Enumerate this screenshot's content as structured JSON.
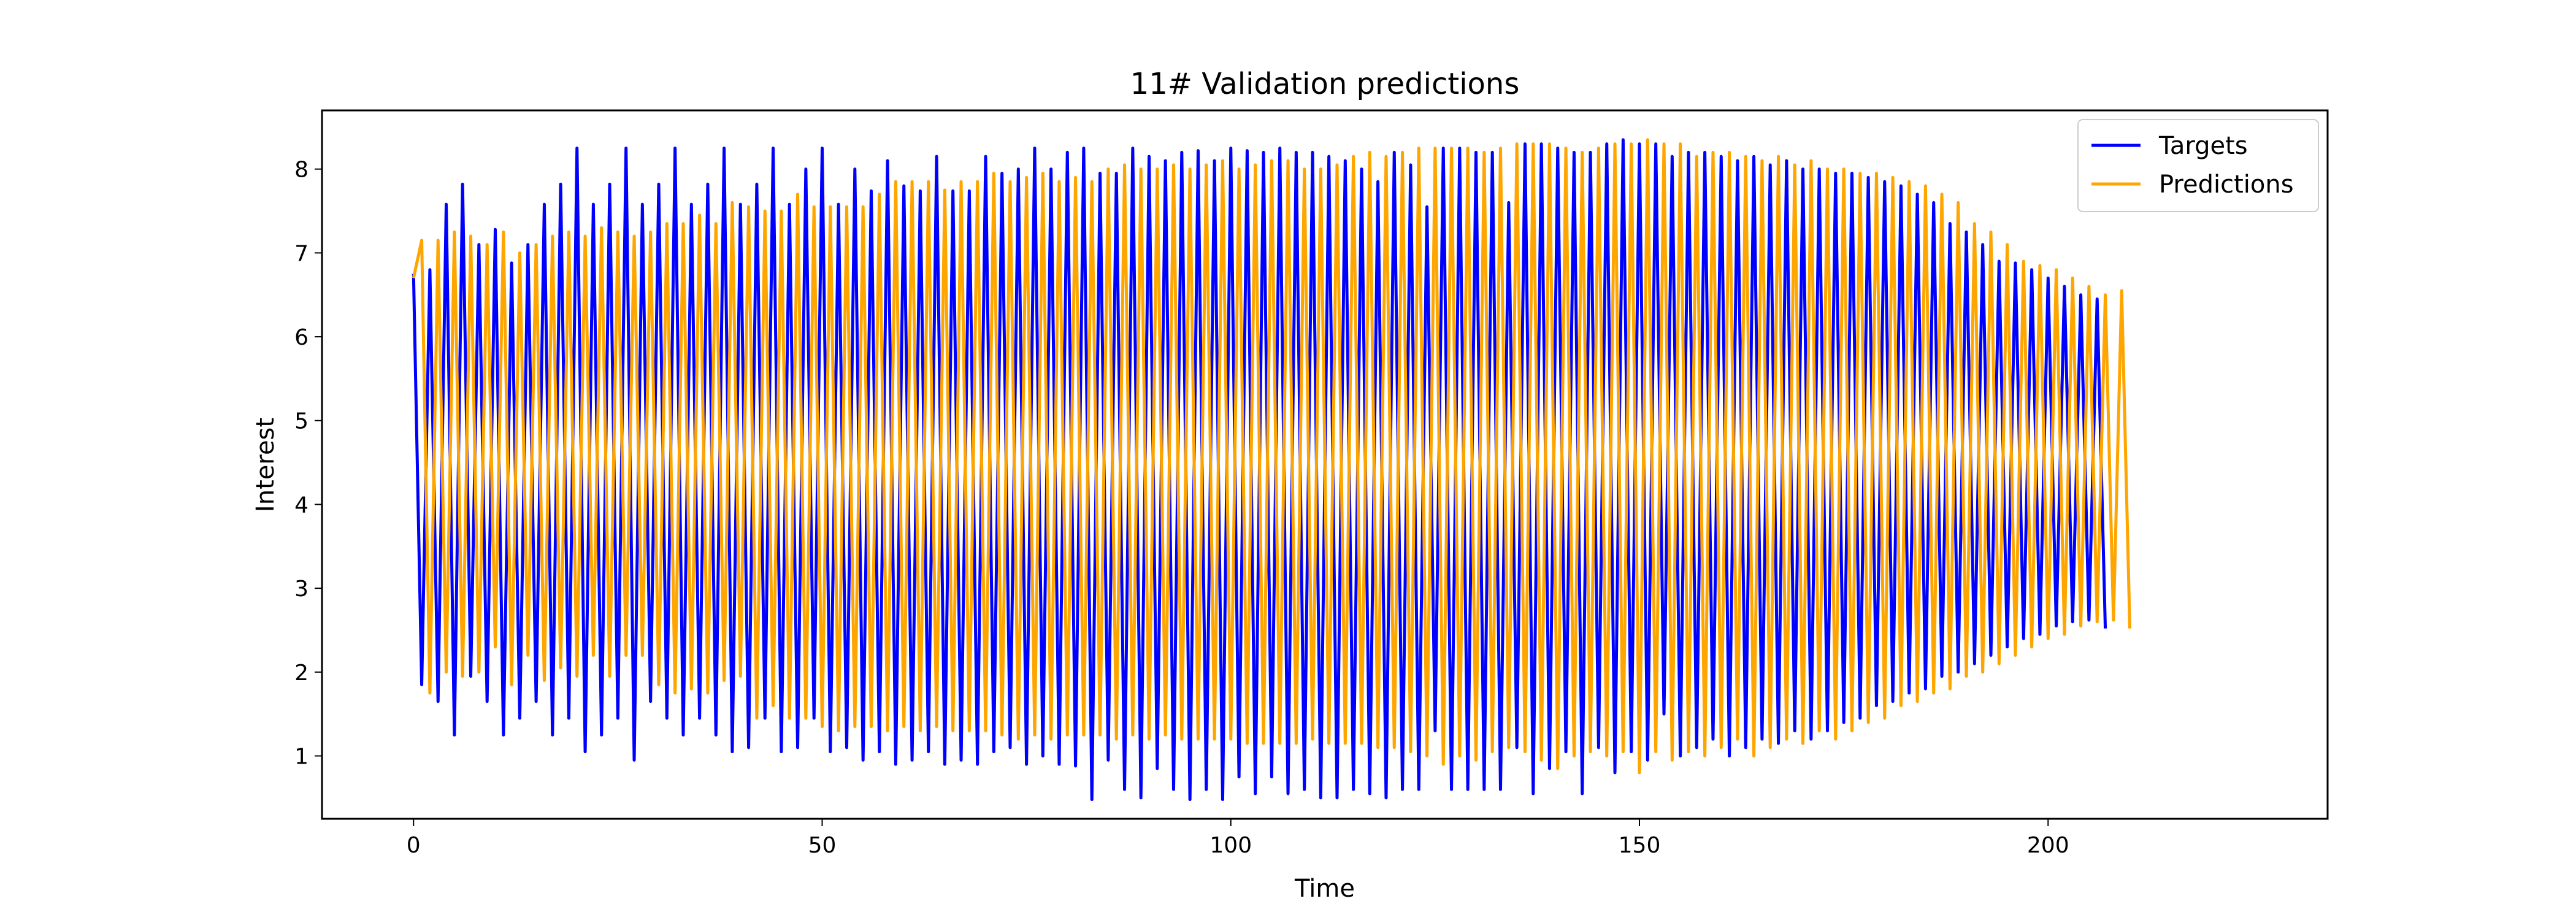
{
  "chart_data": {
    "type": "line",
    "title": "11# Validation predictions",
    "xlabel": "Time",
    "ylabel": "Interest",
    "xlim": [
      -11.2,
      234.2
    ],
    "ylim": [
      0.25,
      8.7
    ],
    "xticks": [
      0,
      50,
      100,
      150,
      200
    ],
    "yticks": [
      1,
      2,
      3,
      4,
      5,
      6,
      7,
      8
    ],
    "grid": false,
    "legend_position": "top-right",
    "n_points": 224,
    "series": [
      {
        "name": "Targets",
        "color": "#0000ff",
        "values": [
          6.75,
          1.85,
          6.8,
          1.65,
          7.58,
          1.25,
          7.82,
          1.95,
          7.1,
          1.65,
          7.28,
          1.25,
          6.88,
          1.45,
          7.1,
          1.65,
          7.58,
          1.25,
          7.82,
          1.45,
          8.25,
          1.05,
          7.58,
          1.25,
          7.82,
          1.45,
          8.25,
          0.95,
          7.58,
          1.65,
          7.82,
          1.45,
          8.25,
          1.25,
          7.58,
          1.45,
          7.82,
          1.25,
          8.25,
          1.05,
          7.58,
          1.1,
          7.82,
          1.45,
          8.25,
          1.05,
          7.58,
          1.1,
          8.0,
          1.45,
          8.25,
          1.05,
          7.58,
          1.1,
          8.0,
          0.95,
          7.74,
          1.05,
          8.1,
          0.9,
          7.8,
          0.95,
          7.74,
          1.05,
          8.15,
          0.9,
          7.74,
          0.95,
          7.74,
          0.9,
          8.15,
          1.05,
          7.95,
          1.1,
          8.0,
          0.9,
          8.25,
          1.0,
          8.0,
          0.9,
          8.2,
          0.88,
          8.25,
          0.48,
          7.95,
          0.95,
          7.95,
          0.6,
          8.25,
          0.5,
          8.15,
          0.85,
          8.1,
          0.6,
          8.2,
          0.48,
          8.22,
          0.6,
          8.1,
          0.48,
          8.25,
          0.75,
          8.22,
          0.55,
          8.2,
          0.75,
          8.25,
          0.55,
          8.2,
          0.6,
          8.2,
          0.5,
          8.15,
          0.5,
          8.1,
          0.6,
          8.0,
          0.55,
          7.85,
          0.5,
          8.2,
          0.6,
          8.05,
          0.6,
          7.55,
          1.3,
          8.25,
          0.6,
          8.25,
          0.6,
          8.2,
          0.6,
          8.2,
          0.6,
          7.6,
          1.1,
          8.3,
          0.55,
          8.3,
          0.85,
          8.25,
          1.05,
          8.2,
          0.55,
          8.2,
          1.1,
          8.3,
          0.8,
          8.35,
          1.05,
          8.3,
          0.95,
          8.3,
          1.5,
          8.15,
          1.0,
          8.2,
          1.1,
          8.2,
          1.2,
          8.15,
          1.0,
          8.1,
          1.1,
          8.15,
          1.2,
          8.05,
          1.15,
          8.1,
          1.3,
          8.0,
          1.2,
          8.0,
          1.3,
          7.95,
          1.4,
          7.95,
          1.45,
          7.9,
          1.6,
          7.85,
          1.65,
          7.8,
          1.75,
          7.7,
          1.8,
          7.6,
          1.95,
          7.35,
          2.0,
          7.25,
          2.1,
          7.1,
          2.2,
          6.9,
          2.3,
          6.88,
          2.4,
          6.8,
          2.45,
          6.7,
          2.55,
          6.6,
          2.6,
          6.5,
          2.62,
          6.45,
          2.52
        ]
      },
      {
        "name": "Predictions",
        "color": "#ffa500",
        "values": [
          6.7,
          7.15,
          1.75,
          7.15,
          2.0,
          7.25,
          1.95,
          7.2,
          2.0,
          7.1,
          2.3,
          7.25,
          1.85,
          7.0,
          2.2,
          7.1,
          1.9,
          7.2,
          2.05,
          7.25,
          1.95,
          7.2,
          2.2,
          7.3,
          1.95,
          7.25,
          2.2,
          7.2,
          2.2,
          7.25,
          1.85,
          7.35,
          1.75,
          7.35,
          1.8,
          7.45,
          1.75,
          7.35,
          1.9,
          7.6,
          1.95,
          7.55,
          1.45,
          7.5,
          1.6,
          7.5,
          1.45,
          7.7,
          1.45,
          7.55,
          1.35,
          7.55,
          1.3,
          7.55,
          1.35,
          7.55,
          1.35,
          7.7,
          1.3,
          7.85,
          1.35,
          7.85,
          1.3,
          7.85,
          1.35,
          7.75,
          1.3,
          7.85,
          1.3,
          7.85,
          1.3,
          7.95,
          1.25,
          7.85,
          1.2,
          7.9,
          1.25,
          7.95,
          1.2,
          7.85,
          1.25,
          7.9,
          1.25,
          7.85,
          1.25,
          8.0,
          1.2,
          8.05,
          1.25,
          8.0,
          1.2,
          8.0,
          1.25,
          8.05,
          1.2,
          8.0,
          1.2,
          8.05,
          1.2,
          8.1,
          1.2,
          8.0,
          1.15,
          8.05,
          1.15,
          8.1,
          1.15,
          8.1,
          1.15,
          8.0,
          1.2,
          8.0,
          1.15,
          8.05,
          1.15,
          8.15,
          1.15,
          8.2,
          1.1,
          8.15,
          1.1,
          8.2,
          1.05,
          8.25,
          1.0,
          8.25,
          0.9,
          8.25,
          1.0,
          8.25,
          0.95,
          8.2,
          1.05,
          8.25,
          1.1,
          8.3,
          1.05,
          8.3,
          0.95,
          8.3,
          0.85,
          8.25,
          1.0,
          8.2,
          1.05,
          8.25,
          1.0,
          8.3,
          1.05,
          8.3,
          0.8,
          8.35,
          1.05,
          8.3,
          0.95,
          8.3,
          1.05,
          8.15,
          1.0,
          8.2,
          1.1,
          8.2,
          1.2,
          8.15,
          1.0,
          8.1,
          1.1,
          8.15,
          1.2,
          8.05,
          1.15,
          8.1,
          1.3,
          8.0,
          1.2,
          8.0,
          1.3,
          7.95,
          1.4,
          7.95,
          1.45,
          7.9,
          1.6,
          7.85,
          1.65,
          7.8,
          1.75,
          7.7,
          1.8,
          7.6,
          1.95,
          7.35,
          2.0,
          7.25,
          2.1,
          7.1,
          2.2,
          6.9,
          2.3,
          6.85,
          2.4,
          6.8,
          2.45,
          6.7,
          2.55,
          6.6,
          2.6,
          6.5,
          2.62,
          6.55,
          2.52
        ]
      }
    ]
  }
}
